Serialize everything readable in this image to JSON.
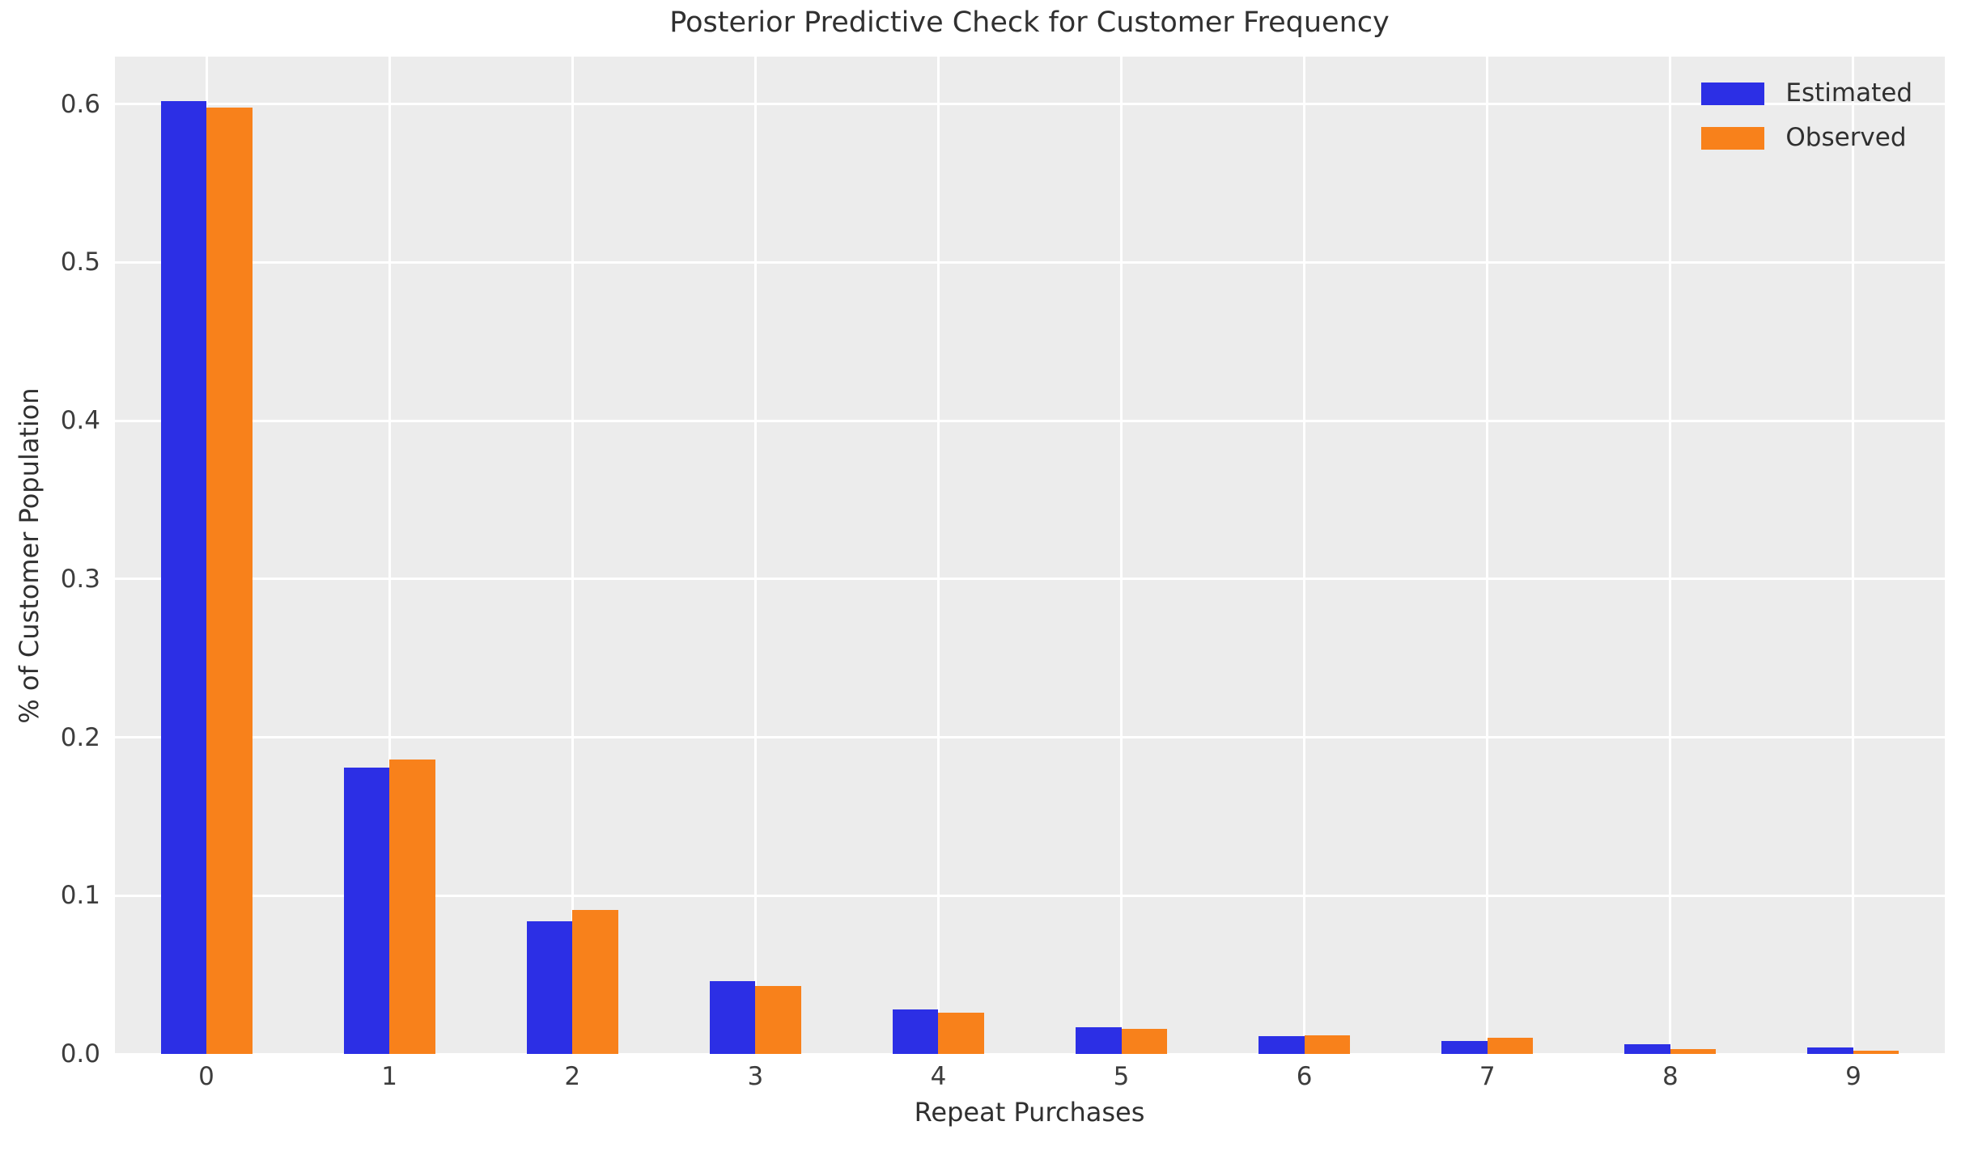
{
  "chart_data": {
    "type": "bar",
    "title": "Posterior Predictive Check for Customer Frequency",
    "xlabel": "Repeat Purchases",
    "ylabel": "% of Customer Population",
    "categories": [
      "0",
      "1",
      "2",
      "3",
      "4",
      "5",
      "6",
      "7",
      "8",
      "9"
    ],
    "series": [
      {
        "name": "Estimated",
        "color": "#2c2fe5",
        "values": [
          0.602,
          0.181,
          0.084,
          0.046,
          0.028,
          0.017,
          0.011,
          0.008,
          0.006,
          0.004
        ]
      },
      {
        "name": "Observed",
        "color": "#f8811b",
        "values": [
          0.598,
          0.186,
          0.091,
          0.043,
          0.026,
          0.016,
          0.012,
          0.01,
          0.003,
          0.002
        ]
      }
    ],
    "yticks": [
      0.0,
      0.1,
      0.2,
      0.3,
      0.4,
      0.5,
      0.6
    ],
    "ylim": [
      0,
      0.63
    ],
    "grid": true,
    "legend_position": "upper right",
    "colors": {
      "plot_background": "#ececec",
      "gridline": "#ffffff",
      "tick_text": "#3d3d3d",
      "label_text": "#303030"
    }
  }
}
